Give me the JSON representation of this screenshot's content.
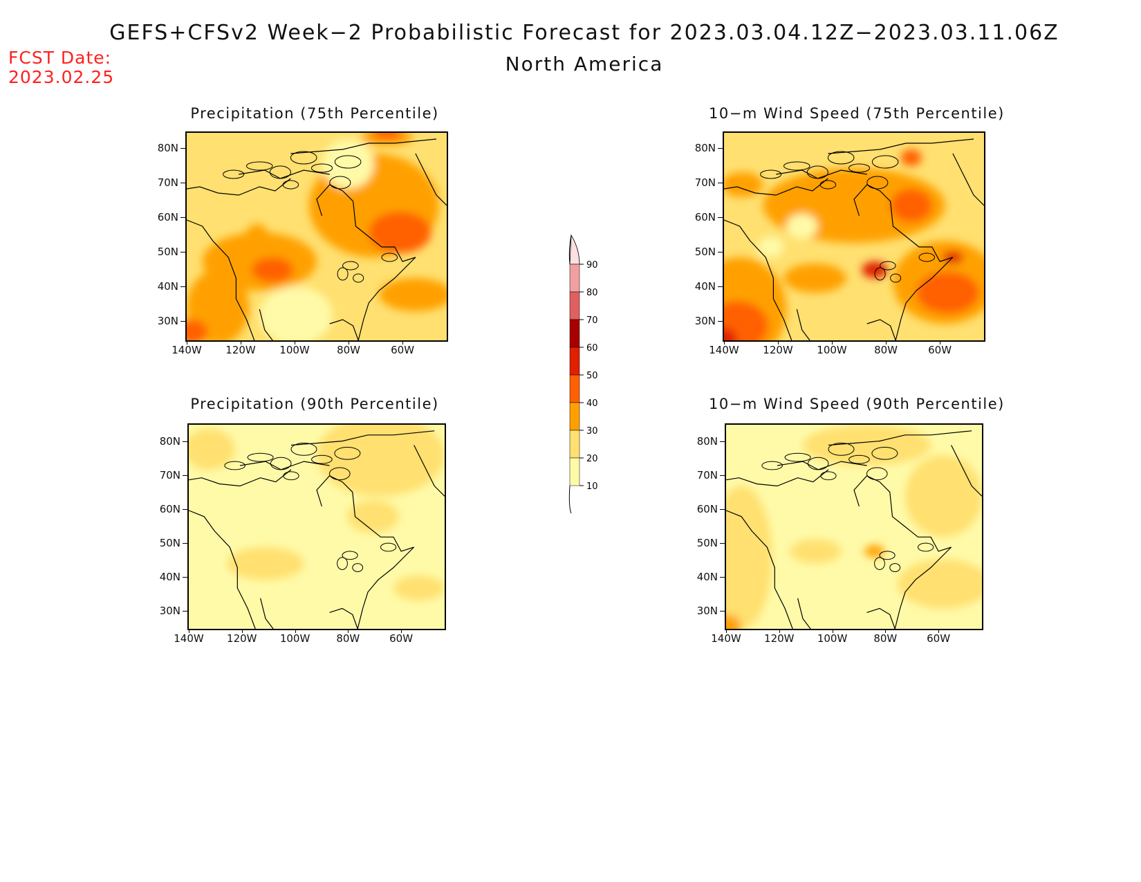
{
  "header": {
    "title": "GEFS+CFSv2 Week−2 Probabilistic Forecast for 2023.03.04.12Z−2023.03.11.06Z",
    "subtitle": "North America",
    "fcst_date_label": "FCST Date:",
    "fcst_date_value": "2023.02.25"
  },
  "panels": [
    {
      "id": "precip-75",
      "title": "Precipitation (75th Percentile)"
    },
    {
      "id": "wind-75",
      "title": "10−m Wind Speed (75th Percentile)"
    },
    {
      "id": "precip-90",
      "title": "Precipitation (90th Percentile)"
    },
    {
      "id": "wind-90",
      "title": "10−m Wind Speed (90th Percentile)"
    }
  ],
  "axes": {
    "lat_labels": [
      "80N",
      "70N",
      "60N",
      "50N",
      "40N",
      "30N"
    ],
    "lon_labels": [
      "140W",
      "120W",
      "100W",
      "80W",
      "60W"
    ]
  },
  "colorbar": {
    "levels": [
      "90",
      "80",
      "70",
      "60",
      "50",
      "40",
      "30",
      "20",
      "10"
    ],
    "colors": [
      "#fde0e0",
      "#f0a0a0",
      "#e06060",
      "#a80000",
      "#e02000",
      "#ff6000",
      "#ffa000",
      "#ffe070",
      "#fffaa8"
    ]
  },
  "colors": {
    "fcst_date": "#ff2020",
    "light": "#fffaa8",
    "pale": "#ffe070",
    "orange": "#ffa000",
    "dark_orange": "#ff6000",
    "red": "#e02000",
    "dark_red": "#a80000"
  }
}
